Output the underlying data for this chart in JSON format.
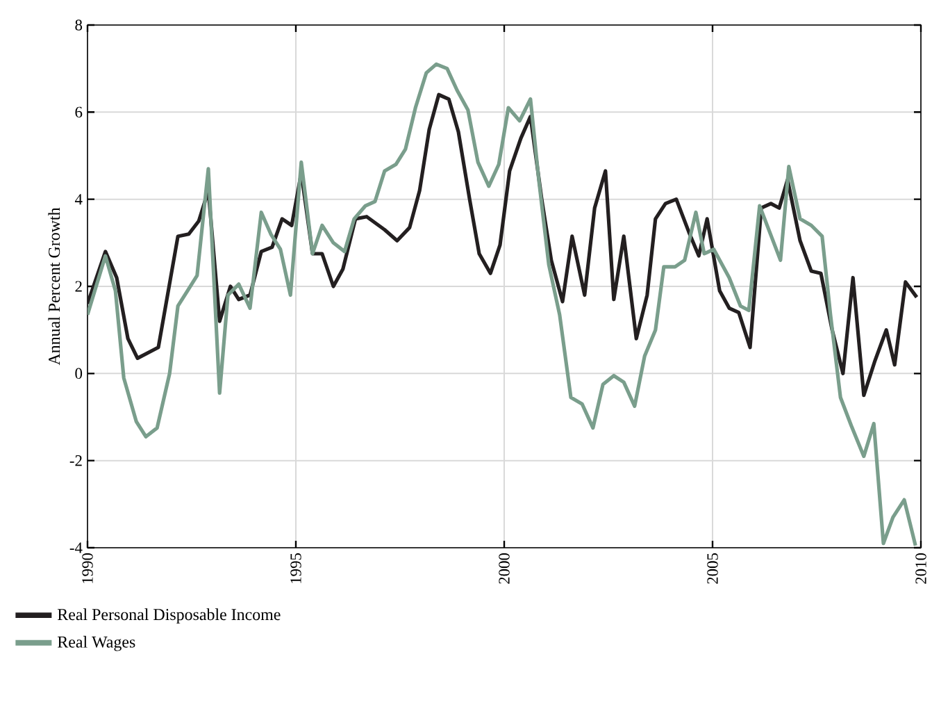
{
  "chart_data": {
    "type": "line",
    "ylabel": "Annual Percent Growth",
    "xlim": [
      1990,
      2010
    ],
    "xticks": [
      1990,
      1995,
      2000,
      2005,
      2010
    ],
    "ylim": [
      -4,
      8
    ],
    "yticks": [
      -4,
      -2,
      0,
      2,
      4,
      6,
      8
    ],
    "grid": true,
    "legend": "bottom left",
    "series": [
      {
        "name": "Real Personal Disposable Income",
        "color": "#231f20",
        "x": [
          1990.0,
          1990.43,
          1990.7,
          1990.97,
          1991.2,
          1991.7,
          1992.17,
          1992.43,
          1992.67,
          1992.9,
          1993.17,
          1993.43,
          1993.63,
          1993.9,
          1994.17,
          1994.43,
          1994.67,
          1994.9,
          1995.13,
          1995.4,
          1995.63,
          1995.9,
          1996.13,
          1996.43,
          1996.7,
          1997.13,
          1997.43,
          1997.73,
          1997.97,
          1998.2,
          1998.43,
          1998.67,
          1998.9,
          1999.17,
          1999.4,
          1999.67,
          1999.9,
          2000.13,
          2000.4,
          2000.63,
          2000.9,
          2001.13,
          2001.4,
          2001.63,
          2001.93,
          2002.17,
          2002.43,
          2002.63,
          2002.87,
          2003.17,
          2003.43,
          2003.63,
          2003.87,
          2004.13,
          2004.43,
          2004.67,
          2004.87,
          2005.17,
          2005.4,
          2005.63,
          2005.9,
          2006.17,
          2006.4,
          2006.6,
          2006.8,
          2007.1,
          2007.37,
          2007.6,
          2007.87,
          2008.13,
          2008.37,
          2008.63,
          2008.9,
          2009.17,
          2009.37,
          2009.63,
          2009.9
        ],
        "values": [
          1.6,
          2.8,
          2.2,
          0.8,
          0.35,
          0.6,
          3.15,
          3.2,
          3.5,
          4.2,
          1.2,
          2.0,
          1.7,
          1.8,
          2.8,
          2.9,
          3.55,
          3.4,
          4.6,
          2.75,
          2.75,
          2.0,
          2.4,
          3.55,
          3.6,
          3.3,
          3.05,
          3.35,
          4.2,
          5.6,
          6.4,
          6.3,
          5.55,
          4.0,
          2.75,
          2.3,
          2.95,
          4.65,
          5.4,
          5.9,
          4.0,
          2.6,
          1.65,
          3.15,
          1.8,
          3.8,
          4.65,
          1.7,
          3.15,
          0.8,
          1.8,
          3.55,
          3.9,
          4.0,
          3.25,
          2.7,
          3.55,
          1.9,
          1.5,
          1.4,
          0.6,
          3.8,
          3.9,
          3.8,
          4.45,
          3.05,
          2.35,
          2.3,
          1.0,
          0.0,
          2.2,
          -0.5,
          0.3,
          1.0,
          0.2,
          2.1,
          1.75
        ]
      },
      {
        "name": "Real Wages",
        "color": "#7a9e8c",
        "x": [
          1990.0,
          1990.43,
          1990.67,
          1990.87,
          1991.17,
          1991.4,
          1991.67,
          1991.97,
          1992.17,
          1992.4,
          1992.63,
          1992.9,
          1993.17,
          1993.37,
          1993.63,
          1993.9,
          1994.17,
          1994.4,
          1994.63,
          1994.87,
          1995.13,
          1995.4,
          1995.63,
          1995.9,
          1996.17,
          1996.4,
          1996.67,
          1996.9,
          1997.13,
          1997.4,
          1997.63,
          1997.87,
          1998.13,
          1998.37,
          1998.63,
          1998.87,
          1999.13,
          1999.37,
          1999.63,
          1999.87,
          2000.1,
          2000.37,
          2000.63,
          2000.83,
          2001.07,
          2001.33,
          2001.6,
          2001.87,
          2002.13,
          2002.37,
          2002.63,
          2002.87,
          2003.13,
          2003.37,
          2003.63,
          2003.83,
          2004.1,
          2004.33,
          2004.6,
          2004.8,
          2005.03,
          2005.4,
          2005.67,
          2005.87,
          2006.13,
          2006.37,
          2006.63,
          2006.83,
          2007.1,
          2007.37,
          2007.63,
          2007.83,
          2008.07,
          2008.33,
          2008.63,
          2008.87,
          2009.1,
          2009.33,
          2009.6,
          2009.87
        ],
        "values": [
          1.35,
          2.7,
          1.9,
          -0.1,
          -1.1,
          -1.45,
          -1.25,
          0.0,
          1.55,
          1.9,
          2.25,
          4.7,
          -0.45,
          1.8,
          2.05,
          1.5,
          3.7,
          3.2,
          2.85,
          1.8,
          4.85,
          2.75,
          3.4,
          3.0,
          2.8,
          3.55,
          3.85,
          3.95,
          4.65,
          4.8,
          5.15,
          6.1,
          6.9,
          7.1,
          7.0,
          6.5,
          6.05,
          4.85,
          4.3,
          4.8,
          6.1,
          5.8,
          6.3,
          4.45,
          2.5,
          1.35,
          -0.55,
          -0.7,
          -1.25,
          -0.25,
          -0.05,
          -0.2,
          -0.75,
          0.4,
          1.0,
          2.45,
          2.45,
          2.6,
          3.7,
          2.75,
          2.85,
          2.2,
          1.55,
          1.45,
          3.85,
          3.25,
          2.6,
          4.75,
          3.55,
          3.4,
          3.15,
          1.35,
          -0.55,
          -1.2,
          -1.9,
          -1.15,
          -3.9,
          -3.3,
          -2.9,
          -3.95
        ]
      }
    ]
  }
}
